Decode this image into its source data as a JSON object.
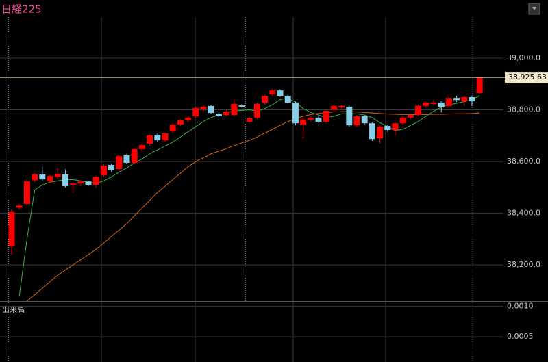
{
  "chart_data": [
    {
      "type": "candlestick",
      "title": "日経225",
      "open": [
        38272,
        38422,
        38436,
        38528,
        38550,
        38523,
        38541,
        38550,
        38510,
        38515,
        38523,
        38510,
        38547,
        38587,
        38571,
        38624,
        38595,
        38648,
        38669,
        38703,
        38682,
        38717,
        38743,
        38759,
        38775,
        38801,
        38815,
        38785,
        38780,
        38780,
        38817,
        38754,
        38770,
        38828,
        38860,
        38875,
        38854,
        38828,
        38743,
        38762,
        38770,
        38754,
        38801,
        38809,
        38812,
        38740,
        38775,
        38748,
        38690,
        38738,
        38722,
        38748,
        38770,
        38780,
        38815,
        38823,
        38828,
        38815,
        38846,
        38833,
        38849,
        38865
      ],
      "close": [
        38404,
        38430,
        38523,
        38550,
        38531,
        38544,
        38552,
        38505,
        38515,
        38523,
        38510,
        38541,
        38584,
        38568,
        38621,
        38595,
        38648,
        38664,
        38701,
        38682,
        38709,
        38743,
        38759,
        38770,
        38807,
        38812,
        38788,
        38775,
        38793,
        38823,
        38812,
        38767,
        38823,
        38854,
        38875,
        38854,
        38828,
        38748,
        38762,
        38770,
        38754,
        38796,
        38815,
        38815,
        38740,
        38775,
        38748,
        38687,
        38735,
        38722,
        38748,
        38770,
        38780,
        38815,
        38828,
        38828,
        38812,
        38846,
        38838,
        38849,
        38833,
        38925.63
      ],
      "high": [
        38415,
        38435,
        38530,
        38555,
        38580,
        38548,
        38575,
        38570,
        38520,
        38528,
        38526,
        38545,
        38590,
        38592,
        38625,
        38630,
        38652,
        38668,
        38706,
        38708,
        38712,
        38748,
        38763,
        38775,
        38812,
        38818,
        38820,
        38790,
        38800,
        38840,
        38822,
        38772,
        38828,
        38860,
        38882,
        38880,
        38858,
        38832,
        38768,
        38775,
        38774,
        38800,
        38820,
        38820,
        38816,
        38780,
        38778,
        38752,
        38740,
        38742,
        38752,
        38775,
        38785,
        38820,
        38832,
        38838,
        38833,
        38850,
        38855,
        38853,
        38855,
        38925.63
      ],
      "low": [
        38240,
        38415,
        38430,
        38520,
        38525,
        38515,
        38535,
        38500,
        38480,
        38505,
        38505,
        38500,
        38540,
        38560,
        38565,
        38590,
        38590,
        38640,
        38660,
        38675,
        38675,
        38710,
        38738,
        38752,
        38768,
        38795,
        38783,
        38760,
        38775,
        38775,
        38808,
        38748,
        38765,
        38820,
        38852,
        38850,
        38825,
        38740,
        38690,
        38755,
        38750,
        38748,
        38795,
        38805,
        38735,
        38735,
        38742,
        38680,
        38670,
        38715,
        38700,
        38742,
        38765,
        38775,
        38808,
        38818,
        38790,
        38810,
        38830,
        38815,
        38815,
        38862
      ],
      "up_color": "#ff0000",
      "down_color": "#87ceeb",
      "series": [
        {
          "color": "#3cb043",
          "values": [
            null,
            38080,
            38300,
            38490,
            38510,
            38520,
            38525,
            38530,
            38530,
            38525,
            38520,
            38515,
            38525,
            38540,
            38560,
            38575,
            38595,
            38610,
            38630,
            38645,
            38660,
            38675,
            38695,
            38715,
            38735,
            38755,
            38770,
            38780,
            38790,
            38795,
            38798,
            38800,
            38795,
            38805,
            38820,
            38840,
            38845,
            38830,
            38805,
            38790,
            38780,
            38770,
            38775,
            38785,
            38785,
            38785,
            38780,
            38770,
            38750,
            38735,
            38720,
            38725,
            38740,
            38755,
            38775,
            38795,
            38810,
            38820,
            38825,
            38832,
            38840,
            38855
          ]
        },
        {
          "color": "#d2691e",
          "values": [
            null,
            null,
            38060,
            38085,
            38110,
            38135,
            38160,
            38180,
            38200,
            38220,
            38240,
            38260,
            38285,
            38310,
            38335,
            38360,
            38390,
            38420,
            38450,
            38480,
            38505,
            38530,
            38555,
            38580,
            38600,
            38615,
            38630,
            38640,
            38650,
            38662,
            38672,
            38682,
            38695,
            38710,
            38725,
            38740,
            38755,
            38765,
            38775,
            38782,
            38786,
            38790,
            38792,
            38793,
            38793,
            38792,
            38790,
            38788,
            38786,
            38784,
            38783,
            38782,
            38782,
            38782,
            38782,
            38783,
            38783,
            38784,
            38785,
            38785,
            38786,
            38788
          ]
        }
      ],
      "last_price": {
        "value": 38925.63,
        "label": "38,925.63"
      },
      "ylim": [
        38060,
        39200
      ],
      "yticks": [
        {
          "value": 38200,
          "label": "38,200.0"
        },
        {
          "value": 38400,
          "label": "38,400.0"
        },
        {
          "value": 38600,
          "label": "38,600.0"
        },
        {
          "value": 38800,
          "label": "38,800.0"
        },
        {
          "value": 39000,
          "label": "39,000.0"
        }
      ],
      "grid": true
    },
    {
      "type": "bar",
      "title": "出来高",
      "values": [],
      "ylim": [
        9e-05,
        0.00107
      ],
      "yticks": [
        {
          "value": 0.0005,
          "label": "0.0005"
        },
        {
          "value": 0.001,
          "label": "0.0010"
        }
      ]
    }
  ]
}
